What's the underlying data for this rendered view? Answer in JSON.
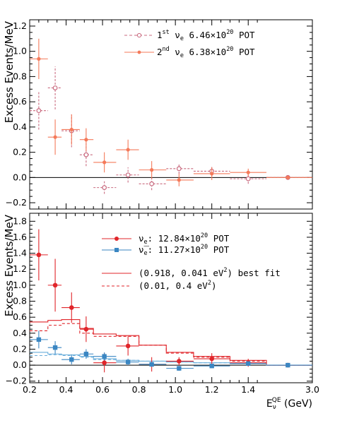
{
  "chart_data": [
    {
      "type": "scatter",
      "ylabel": "Excess Events/MeV",
      "xlim": [
        0.2,
        3.0
      ],
      "ylim": [
        -0.25,
        1.25
      ],
      "yticks": [
        -0.2,
        0.0,
        0.2,
        0.4,
        0.6,
        0.8,
        1.0,
        1.2
      ],
      "ytick_labels": [
        "−0.2",
        "0.0",
        "0.2",
        "0.4",
        "0.6",
        "0.8",
        "1.0",
        "1.2"
      ],
      "grid": false,
      "legend_position": "top-right",
      "bin_edges": [
        0.2,
        0.3,
        0.375,
        0.475,
        0.55,
        0.675,
        0.8,
        0.95,
        1.1,
        1.3,
        1.5,
        3.0
      ],
      "series": [
        {
          "label_parts": [
            "1",
            "st",
            " ν",
            "e",
            " 6.46×10",
            "20",
            " POT"
          ],
          "marker": "open-circle",
          "linestyle": "dashed",
          "color": "#c96a7f",
          "x": [
            0.25,
            0.34,
            0.43,
            0.51,
            0.61,
            0.74,
            0.87,
            1.02,
            1.2,
            1.4,
            2.2
          ],
          "y": [
            0.53,
            0.71,
            0.37,
            0.18,
            -0.08,
            0.02,
            -0.05,
            0.07,
            0.05,
            -0.01,
            0.0
          ],
          "yerr": [
            0.15,
            0.17,
            0.13,
            0.09,
            0.05,
            0.06,
            0.05,
            0.04,
            0.04,
            0.04,
            0.01
          ]
        },
        {
          "label_parts": [
            "2",
            "nd",
            " ν",
            "e",
            " 6.38×10",
            "20",
            " POT"
          ],
          "marker": "filled-circle",
          "linestyle": "solid",
          "color": "#f47a5a",
          "x": [
            0.25,
            0.34,
            0.43,
            0.51,
            0.61,
            0.74,
            0.87,
            1.02,
            1.2,
            1.4,
            2.2
          ],
          "y": [
            0.94,
            0.32,
            0.38,
            0.3,
            0.12,
            0.22,
            0.06,
            -0.02,
            0.03,
            0.04,
            0.0
          ],
          "yerr": [
            0.16,
            0.14,
            0.12,
            0.09,
            0.08,
            0.08,
            0.07,
            0.05,
            0.05,
            0.03,
            0.01
          ]
        }
      ]
    },
    {
      "type": "scatter",
      "ylabel": "Excess Events/MeV",
      "xlabel_main": "E",
      "xlabel_sub": "ν",
      "xlabel_sup": "QE",
      "xlabel_unit": " (GeV)",
      "xlim": [
        0.2,
        3.0
      ],
      "ylim": [
        -0.22,
        1.9
      ],
      "yticks": [
        -0.2,
        0.0,
        0.2,
        0.4,
        0.6,
        0.8,
        1.0,
        1.2,
        1.4,
        1.6,
        1.8
      ],
      "ytick_labels": [
        "−0.2",
        "0.0",
        "0.2",
        "0.4",
        "0.6",
        "0.8",
        "1.0",
        "1.2",
        "1.4",
        "1.6",
        "1.8"
      ],
      "xticks": [
        0.2,
        0.4,
        0.6,
        0.8,
        1.0,
        1.2,
        1.4,
        3.0
      ],
      "xtick_labels": [
        "0.2",
        "0.4",
        "0.6",
        "0.8",
        "1.0",
        "1.2",
        "1.4",
        "3.0"
      ],
      "grid": false,
      "legend_position": "top-right",
      "bin_edges": [
        0.2,
        0.3,
        0.375,
        0.475,
        0.55,
        0.675,
        0.8,
        0.95,
        1.1,
        1.3,
        1.5,
        3.0
      ],
      "series": [
        {
          "label_parts": [
            "ν",
            "e",
            ": 12.84×10",
            "20",
            " POT"
          ],
          "marker": "filled-circle",
          "linestyle": "solid",
          "color": "#e0252a",
          "x": [
            0.25,
            0.34,
            0.43,
            0.51,
            0.61,
            0.74,
            0.87,
            1.02,
            1.2,
            1.4,
            2.2
          ],
          "y": [
            1.38,
            1.0,
            0.72,
            0.45,
            0.03,
            0.24,
            0.01,
            0.05,
            0.08,
            0.03,
            0.0
          ],
          "yerr": [
            0.32,
            0.33,
            0.19,
            0.16,
            0.12,
            0.12,
            0.09,
            0.05,
            0.07,
            0.05,
            0.01
          ]
        },
        {
          "label_parts": [
            "ν̅",
            "e",
            ": 11.27×10",
            "20",
            " POT"
          ],
          "marker": "filled-square",
          "linestyle": "solid",
          "color": "#3a86c2",
          "x": [
            0.25,
            0.34,
            0.43,
            0.51,
            0.61,
            0.74,
            0.87,
            1.02,
            1.2,
            1.4,
            2.2
          ],
          "y": [
            0.32,
            0.22,
            0.07,
            0.14,
            0.11,
            0.04,
            0.01,
            -0.04,
            -0.01,
            0.02,
            0.0
          ],
          "yerr": [
            0.11,
            0.08,
            0.06,
            0.06,
            0.05,
            0.04,
            0.03,
            0.03,
            0.02,
            0.02,
            0.01
          ]
        }
      ],
      "fits": [
        {
          "label_parts": [
            "(0.918, 0.041 eV",
            "2",
            ") best fit"
          ],
          "color": "#e0252a",
          "linestyle": "solid",
          "nu": [
            0.54,
            0.56,
            0.57,
            0.46,
            0.39,
            0.37,
            0.25,
            0.16,
            0.11,
            0.06,
            0.0
          ],
          "nubar": [
            0.16,
            0.14,
            0.13,
            0.11,
            0.08,
            0.06,
            0.05,
            0.04,
            0.03,
            0.02,
            0.0
          ]
        },
        {
          "label_parts": [
            "(0.01, 0.4 eV",
            "2",
            ")"
          ],
          "color": "#e0252a",
          "linestyle": "dashed",
          "nu": [
            0.43,
            0.5,
            0.52,
            0.4,
            0.36,
            0.36,
            0.25,
            0.15,
            0.1,
            0.05,
            0.0
          ],
          "nubar": [
            0.12,
            0.13,
            0.12,
            0.1,
            0.07,
            0.06,
            0.05,
            0.04,
            0.03,
            0.02,
            0.0
          ]
        }
      ]
    }
  ]
}
